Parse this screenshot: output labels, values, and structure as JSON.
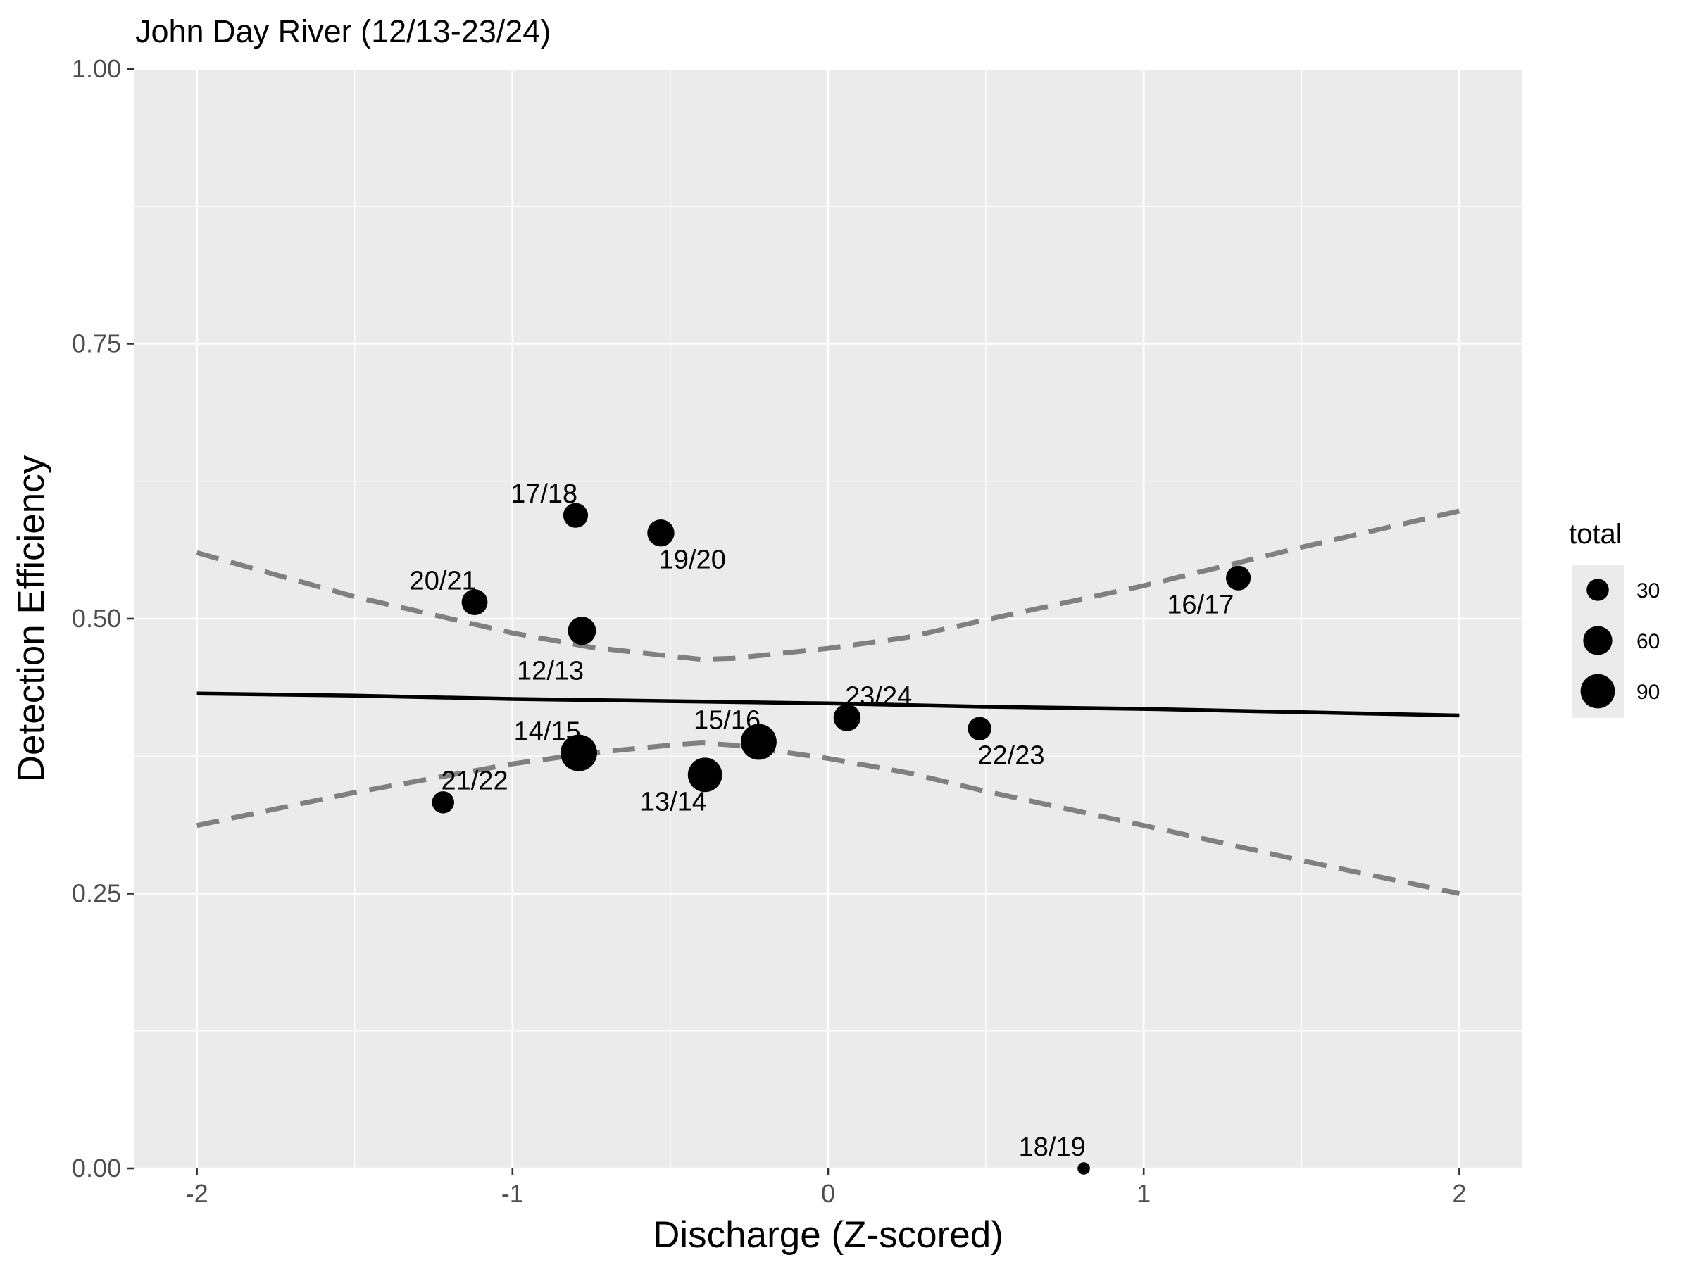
{
  "chart_data": {
    "type": "scatter",
    "title": "John Day River (12/13-23/24)",
    "xlabel": "Discharge (Z-scored)",
    "ylabel": "Detection Efficiency",
    "xlim": [
      -2.2,
      2.2
    ],
    "ylim": [
      0,
      1
    ],
    "x_ticks": [
      -2,
      -1,
      0,
      1,
      2
    ],
    "x_tick_labels": [
      "-2",
      "-1",
      "0",
      "1",
      "2"
    ],
    "y_ticks": [
      0,
      0.25,
      0.5,
      0.75,
      1
    ],
    "y_tick_labels": [
      "0.00",
      "0.25",
      "0.50",
      "0.75",
      "1.00"
    ],
    "grid": true,
    "points": [
      {
        "label": "12/13",
        "x": -0.78,
        "y": 0.489,
        "total": 55,
        "label_dx": -0.1,
        "label_dy": -0.036
      },
      {
        "label": "13/14",
        "x": -0.39,
        "y": 0.358,
        "total": 90,
        "label_dx": -0.1,
        "label_dy": -0.024
      },
      {
        "label": "14/15",
        "x": -0.79,
        "y": 0.378,
        "total": 105,
        "label_dx": -0.1,
        "label_dy": 0.02
      },
      {
        "label": "15/16",
        "x": -0.22,
        "y": 0.388,
        "total": 100,
        "label_dx": -0.1,
        "label_dy": 0.02
      },
      {
        "label": "16/17",
        "x": 1.3,
        "y": 0.537,
        "total": 40,
        "label_dx": -0.12,
        "label_dy": -0.024
      },
      {
        "label": "17/18",
        "x": -0.8,
        "y": 0.594,
        "total": 40,
        "label_dx": -0.1,
        "label_dy": 0.02
      },
      {
        "label": "18/19",
        "x": 0.81,
        "y": 0.0,
        "total": 5,
        "label_dx": -0.1,
        "label_dy": 0.02
      },
      {
        "label": "19/20",
        "x": -0.53,
        "y": 0.578,
        "total": 50,
        "label_dx": 0.1,
        "label_dy": -0.024
      },
      {
        "label": "20/21",
        "x": -1.12,
        "y": 0.515,
        "total": 45,
        "label_dx": -0.1,
        "label_dy": 0.02
      },
      {
        "label": "21/22",
        "x": -1.22,
        "y": 0.333,
        "total": 30,
        "label_dx": 0.1,
        "label_dy": 0.02
      },
      {
        "label": "22/23",
        "x": 0.48,
        "y": 0.4,
        "total": 35,
        "label_dx": 0.1,
        "label_dy": -0.024
      },
      {
        "label": "23/24",
        "x": 0.06,
        "y": 0.41,
        "total": 50,
        "label_dx": 0.1,
        "label_dy": 0.02
      }
    ],
    "fit": {
      "x": [
        -2,
        -1.5,
        -1,
        -0.5,
        0,
        0.5,
        1,
        1.5,
        2
      ],
      "y": [
        0.432,
        0.43,
        0.427,
        0.425,
        0.423,
        0.42,
        0.418,
        0.415,
        0.412
      ]
    },
    "upper_ci": {
      "x": [
        -2,
        -1.5,
        -1,
        -0.75,
        -0.5,
        -0.4,
        -0.3,
        0,
        0.25,
        0.5,
        1,
        1.5,
        2
      ],
      "y": [
        0.56,
        0.52,
        0.487,
        0.474,
        0.466,
        0.463,
        0.464,
        0.473,
        0.483,
        0.499,
        0.53,
        0.565,
        0.598
      ]
    },
    "lower_ci": {
      "x": [
        -2,
        -1.5,
        -1,
        -0.75,
        -0.5,
        -0.4,
        -0.3,
        0,
        0.25,
        0.5,
        1,
        1.5,
        2
      ],
      "y": [
        0.312,
        0.342,
        0.368,
        0.378,
        0.385,
        0.387,
        0.385,
        0.373,
        0.36,
        0.343,
        0.312,
        0.28,
        0.25
      ]
    },
    "legend": {
      "title": "total",
      "position": "right",
      "entries": [
        {
          "label": "30",
          "value": 30
        },
        {
          "label": "60",
          "value": 60
        },
        {
          "label": "90",
          "value": 90
        }
      ]
    },
    "colors": {
      "panel": "#ebebeb",
      "grid": "#ffffff",
      "points": "#000000",
      "fit": "#000000",
      "ci": "#808080",
      "tick_text": "#4d4d4d"
    }
  }
}
